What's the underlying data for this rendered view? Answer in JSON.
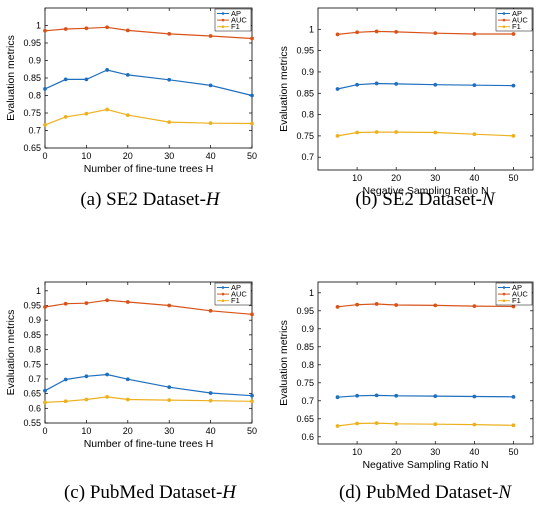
{
  "chart_data": [
    {
      "type": "line",
      "caption_prefix": "(a)  SE2 Dataset-",
      "caption_var": "H",
      "xlabel": "Number of fine-tune trees H",
      "ylabel": "Evaluation metrics",
      "xlim": [
        0,
        50
      ],
      "ylim": [
        0.65,
        1.05
      ],
      "xticks": [
        0,
        10,
        20,
        30,
        40,
        50
      ],
      "yticks": [
        0.65,
        0.7,
        0.75,
        0.8,
        0.85,
        0.9,
        0.95,
        1
      ],
      "ytick_labels": [
        "0.65",
        "0.7",
        "0.75",
        "0.8",
        "0.85",
        "0.9",
        "0.95",
        "1"
      ],
      "legend_position": "top-right",
      "grid": false,
      "x": [
        0,
        5,
        10,
        15,
        20,
        30,
        40,
        50
      ],
      "series": [
        {
          "name": "AP",
          "color": "#1f6fbf",
          "values": [
            0.819,
            0.846,
            0.846,
            0.873,
            0.859,
            0.845,
            0.829,
            0.8
          ]
        },
        {
          "name": "AUC",
          "color": "#d95319",
          "values": [
            0.985,
            0.99,
            0.992,
            0.995,
            0.986,
            0.976,
            0.97,
            0.963
          ]
        },
        {
          "name": "F1",
          "color": "#edb120",
          "values": [
            0.716,
            0.739,
            0.748,
            0.76,
            0.744,
            0.724,
            0.721,
            0.72
          ]
        }
      ]
    },
    {
      "type": "line",
      "caption_prefix": "(b)  SE2 Dataset-",
      "caption_var": "N",
      "xlabel": "Negative Sampling Ratio N",
      "ylabel": "Evaluation metrics",
      "xlim": [
        0,
        55
      ],
      "ylim": [
        0.67,
        1.05
      ],
      "xticks": [
        10,
        20,
        30,
        40,
        50
      ],
      "yticks": [
        0.7,
        0.75,
        0.8,
        0.85,
        0.9,
        0.95,
        1
      ],
      "ytick_labels": [
        "0.7",
        "0.75",
        "0.8",
        "0.85",
        "0.9",
        "0.95",
        "1"
      ],
      "legend_position": "top-right",
      "grid": false,
      "x": [
        5,
        10,
        15,
        20,
        30,
        40,
        50
      ],
      "series": [
        {
          "name": "AP",
          "color": "#1f6fbf",
          "values": [
            0.86,
            0.87,
            0.873,
            0.872,
            0.87,
            0.869,
            0.868
          ]
        },
        {
          "name": "AUC",
          "color": "#d95319",
          "values": [
            0.988,
            0.993,
            0.995,
            0.994,
            0.991,
            0.989,
            0.989
          ]
        },
        {
          "name": "F1",
          "color": "#edb120",
          "values": [
            0.75,
            0.758,
            0.759,
            0.759,
            0.758,
            0.754,
            0.75
          ]
        }
      ]
    },
    {
      "type": "line",
      "caption_prefix": "(c)  PubMed Dataset-",
      "caption_var": "H",
      "xlabel": "Number of fine-tune trees H",
      "ylabel": "Evaluation metrics",
      "xlim": [
        0,
        50
      ],
      "ylim": [
        0.55,
        1.03
      ],
      "xticks": [
        0,
        10,
        20,
        30,
        40,
        50
      ],
      "yticks": [
        0.55,
        0.6,
        0.65,
        0.7,
        0.75,
        0.8,
        0.85,
        0.9,
        0.95,
        1
      ],
      "ytick_labels": [
        "0.55",
        "0.6",
        "0.65",
        "0.7",
        "0.75",
        "0.8",
        "0.85",
        "0.9",
        "0.95",
        "1"
      ],
      "legend_position": "top-right",
      "grid": false,
      "x": [
        0,
        5,
        10,
        15,
        20,
        30,
        40,
        50
      ],
      "series": [
        {
          "name": "AP",
          "color": "#1f6fbf",
          "values": [
            0.66,
            0.698,
            0.709,
            0.715,
            0.699,
            0.672,
            0.652,
            0.643
          ]
        },
        {
          "name": "AUC",
          "color": "#d95319",
          "values": [
            0.945,
            0.956,
            0.958,
            0.968,
            0.962,
            0.95,
            0.932,
            0.92
          ]
        },
        {
          "name": "F1",
          "color": "#edb120",
          "values": [
            0.62,
            0.624,
            0.63,
            0.639,
            0.63,
            0.628,
            0.626,
            0.624
          ]
        }
      ]
    },
    {
      "type": "line",
      "caption_prefix": "(d)  PubMed Dataset-",
      "caption_var": "N",
      "xlabel": "Negative Sampling Ratio N",
      "ylabel": "Evaluation metrics",
      "xlim": [
        0,
        55
      ],
      "ylim": [
        0.58,
        1.03
      ],
      "xticks": [
        10,
        20,
        30,
        40,
        50
      ],
      "yticks": [
        0.6,
        0.65,
        0.7,
        0.75,
        0.8,
        0.85,
        0.9,
        0.95,
        1
      ],
      "ytick_labels": [
        "0.6",
        "0.65",
        "0.7",
        "0.75",
        "0.8",
        "0.85",
        "0.9",
        "0.95",
        "1"
      ],
      "legend_position": "top-right",
      "grid": false,
      "x": [
        5,
        10,
        15,
        20,
        30,
        40,
        50
      ],
      "series": [
        {
          "name": "AP",
          "color": "#1f6fbf",
          "values": [
            0.71,
            0.714,
            0.715,
            0.714,
            0.713,
            0.712,
            0.711
          ]
        },
        {
          "name": "AUC",
          "color": "#d95319",
          "values": [
            0.961,
            0.967,
            0.969,
            0.966,
            0.965,
            0.963,
            0.962
          ]
        },
        {
          "name": "F1",
          "color": "#edb120",
          "values": [
            0.63,
            0.637,
            0.638,
            0.636,
            0.635,
            0.634,
            0.632
          ]
        }
      ]
    }
  ]
}
